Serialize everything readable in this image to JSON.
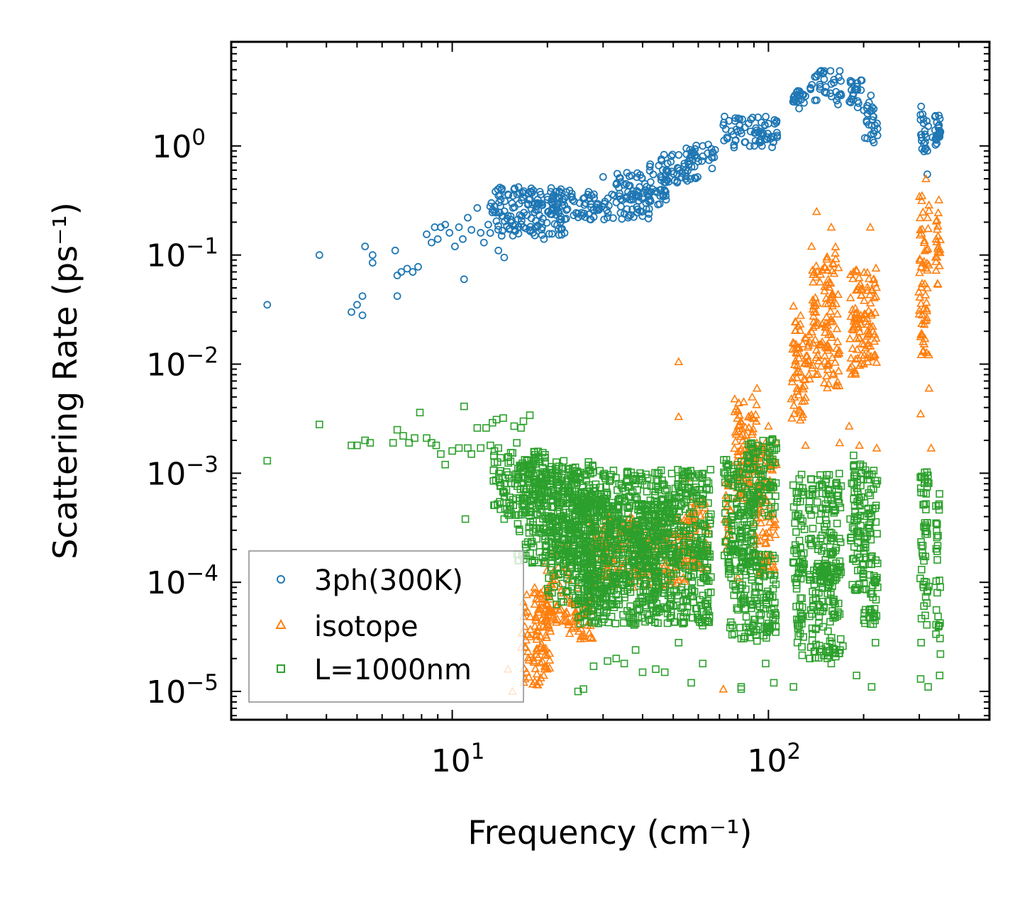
{
  "chart_data": {
    "type": "scatter",
    "title": "",
    "xlabel": "Frequency (cm⁻¹)",
    "ylabel": "Scattering Rate (ps⁻¹)",
    "x_scale": "log",
    "y_scale": "log",
    "xlim": [
      2.0,
      500
    ],
    "ylim": [
      5.5e-06,
      9.0
    ],
    "x_major_ticks": [
      {
        "value": 10,
        "base": "10",
        "exp": "1"
      },
      {
        "value": 100,
        "base": "10",
        "exp": "2"
      }
    ],
    "y_major_ticks": [
      {
        "value": 1,
        "base": "10",
        "exp": "0"
      },
      {
        "value": 0.1,
        "base": "10",
        "exp": "−1"
      },
      {
        "value": 0.01,
        "base": "10",
        "exp": "−2"
      },
      {
        "value": 0.001,
        "base": "10",
        "exp": "−3"
      },
      {
        "value": 0.0001,
        "base": "10",
        "exp": "−4"
      },
      {
        "value": 1e-05,
        "base": "10",
        "exp": "−5"
      }
    ],
    "legend": {
      "position": "lower-left"
    },
    "series": [
      {
        "name": "3ph(300K)",
        "marker": "circle",
        "color": "#1f77b4",
        "points": [
          [
            2.6,
            0.035
          ],
          [
            3.8,
            0.1
          ],
          [
            4.8,
            0.03
          ],
          [
            5.0,
            0.035
          ],
          [
            5.2,
            0.042
          ],
          [
            5.2,
            0.028
          ],
          [
            5.3,
            0.12
          ],
          [
            5.6,
            0.085
          ],
          [
            5.6,
            0.1
          ],
          [
            6.6,
            0.11
          ],
          [
            6.7,
            0.065
          ],
          [
            6.7,
            0.042
          ],
          [
            6.9,
            0.07
          ],
          [
            7.2,
            0.075
          ],
          [
            7.5,
            0.07
          ],
          [
            7.8,
            0.078
          ],
          [
            8.3,
            0.155
          ],
          [
            8.6,
            0.13
          ],
          [
            8.8,
            0.18
          ],
          [
            9.0,
            0.14
          ],
          [
            9.2,
            0.18
          ],
          [
            9.5,
            0.19
          ],
          [
            9.8,
            0.16
          ],
          [
            10.2,
            0.12
          ],
          [
            10.5,
            0.18
          ],
          [
            10.8,
            0.14
          ],
          [
            10.9,
            0.06
          ],
          [
            11.2,
            0.22
          ],
          [
            11.5,
            0.17
          ],
          [
            12.0,
            0.27
          ],
          [
            12.3,
            0.16
          ],
          [
            12.6,
            0.13
          ],
          [
            13.0,
            0.19
          ],
          [
            13.3,
            0.3
          ],
          [
            13.6,
            0.25
          ],
          [
            14.0,
            0.11
          ],
          [
            14.2,
            0.28
          ],
          [
            14.6,
            0.095
          ],
          [
            15.0,
            0.36
          ],
          [
            15.3,
            0.2
          ],
          [
            15.7,
            0.4
          ],
          [
            16.2,
            0.42
          ],
          [
            16.8,
            0.18
          ],
          [
            17.4,
            0.37
          ],
          [
            18.0,
            0.16
          ],
          [
            18.6,
            0.3
          ],
          [
            19.5,
            0.14
          ],
          [
            20.5,
            0.38
          ],
          [
            22.0,
            0.2
          ],
          [
            23.5,
            0.39
          ],
          [
            25.0,
            0.24
          ],
          [
            27.0,
            0.38
          ],
          [
            28.0,
            0.26
          ],
          [
            30.0,
            0.52
          ],
          [
            32.0,
            0.36
          ],
          [
            35.0,
            0.44
          ],
          [
            36.0,
            0.22
          ],
          [
            41.0,
            0.3
          ],
          [
            45.0,
            0.66
          ],
          [
            52.0,
            0.62
          ],
          [
            55.0,
            0.95
          ],
          [
            60.0,
            0.72
          ],
          [
            62.0,
            1.0
          ],
          [
            66.0,
            0.94
          ],
          [
            72.0,
            1.55
          ],
          [
            75.0,
            1.7
          ],
          [
            80.0,
            1.35
          ],
          [
            88.0,
            1.75
          ],
          [
            100.0,
            1.6
          ],
          [
            104.0,
            1.2
          ],
          [
            121.0,
            2.9
          ],
          [
            125.0,
            2.2
          ],
          [
            136.0,
            3.3
          ],
          [
            143.0,
            4.5
          ],
          [
            158.0,
            3.7
          ],
          [
            166.0,
            2.4
          ],
          [
            185.0,
            2.9
          ],
          [
            196.0,
            4.0
          ],
          [
            208.0,
            2.5
          ],
          [
            215.0,
            1.3
          ],
          [
            304.0,
            2.3
          ],
          [
            310.0,
            1.05
          ],
          [
            318.0,
            0.55
          ],
          [
            330.0,
            1.2
          ],
          [
            346.0,
            1.9
          ],
          [
            350.0,
            1.35
          ]
        ],
        "clusters": [
          [
            13,
            23,
            0.15,
            0.42
          ],
          [
            20,
            42,
            0.21,
            0.38
          ],
          [
            33,
            48,
            0.29,
            0.58
          ],
          [
            42,
            60,
            0.46,
            0.85
          ],
          [
            55,
            68,
            0.62,
            1.05
          ],
          [
            72,
            107,
            0.95,
            1.9
          ],
          [
            119,
            131,
            2.4,
            3.2
          ],
          [
            135,
            170,
            2.6,
            4.9
          ],
          [
            180,
            200,
            2.1,
            4.1
          ],
          [
            200,
            222,
            1.05,
            3.0
          ],
          [
            301,
            322,
            0.85,
            2.0
          ],
          [
            336,
            350,
            0.95,
            1.95
          ]
        ]
      },
      {
        "name": "isotope",
        "marker": "triangle",
        "color": "#ff7f0e",
        "points": [
          [
            15.0,
            1.6e-05
          ],
          [
            15.5,
            1e-05
          ],
          [
            17.0,
            1.3e-05
          ],
          [
            18.5,
            3e-05
          ],
          [
            19.8,
            0.00015
          ],
          [
            21.0,
            0.00019
          ],
          [
            22.0,
            0.00023
          ],
          [
            23.5,
            0.00023
          ],
          [
            25.0,
            7e-05
          ],
          [
            28.0,
            0.00019
          ],
          [
            52.0,
            0.0105
          ],
          [
            52.0,
            0.0033
          ],
          [
            55.0,
            0.0009
          ],
          [
            72.0,
            1.05e-05
          ],
          [
            80.0,
            0.00011
          ],
          [
            92.0,
            0.006
          ],
          [
            100.0,
            0.0027
          ],
          [
            106.0,
            0.0012
          ],
          [
            120.0,
            0.034
          ],
          [
            123.0,
            0.0075
          ],
          [
            131.0,
            0.0018
          ],
          [
            137.0,
            0.12
          ],
          [
            142.0,
            0.25
          ],
          [
            148.0,
            0.016
          ],
          [
            158.0,
            0.18
          ],
          [
            160.0,
            0.008
          ],
          [
            168.0,
            0.0019
          ],
          [
            180.0,
            0.0027
          ],
          [
            186.0,
            0.07
          ],
          [
            194.0,
            0.0018
          ],
          [
            210.0,
            0.18
          ],
          [
            214.0,
            0.02
          ],
          [
            220.0,
            0.0017
          ],
          [
            303.0,
            0.0035
          ],
          [
            315.0,
            0.5
          ],
          [
            318.0,
            0.05
          ],
          [
            322.0,
            0.006
          ],
          [
            327.0,
            0.0017
          ],
          [
            339.0,
            0.14
          ],
          [
            346.0,
            0.32
          ]
        ],
        "clusters": [
          [
            16.5,
            20.5,
            1.1e-05,
            9e-05
          ],
          [
            19.5,
            23.5,
            4e-05,
            0.00014
          ],
          [
            23.5,
            28.0,
            3e-05,
            0.0001
          ],
          [
            27.0,
            55.0,
            9e-05,
            0.0004
          ],
          [
            55.0,
            64.0,
            0.00012,
            0.0006
          ],
          [
            72.0,
            76.0,
            0.0002,
            0.0009
          ],
          [
            78.0,
            92.0,
            0.0005,
            0.005
          ],
          [
            90.0,
            106.0,
            0.00012,
            0.002
          ],
          [
            118.0,
            129.0,
            0.003,
            0.03
          ],
          [
            129.0,
            135.0,
            0.004,
            0.02
          ],
          [
            137.0,
            148.0,
            0.008,
            0.08
          ],
          [
            150.0,
            168.0,
            0.006,
            0.12
          ],
          [
            180.0,
            196.0,
            0.008,
            0.09
          ],
          [
            196.0,
            220.0,
            0.01,
            0.09
          ],
          [
            299.0,
            322.0,
            0.012,
            0.35
          ],
          [
            337.0,
            350.0,
            0.05,
            0.3
          ]
        ]
      },
      {
        "name": "L=1000nm",
        "marker": "square",
        "color": "#2ca02c",
        "points": [
          [
            2.6,
            0.0013
          ],
          [
            3.8,
            0.0028
          ],
          [
            4.8,
            0.0018
          ],
          [
            5.0,
            0.0018
          ],
          [
            5.3,
            0.002
          ],
          [
            5.5,
            0.0019
          ],
          [
            6.5,
            0.0019
          ],
          [
            6.7,
            0.0025
          ],
          [
            7.0,
            0.0022
          ],
          [
            7.3,
            0.0019
          ],
          [
            7.6,
            0.0021
          ],
          [
            7.9,
            0.0036
          ],
          [
            8.3,
            0.0021
          ],
          [
            8.6,
            0.0019
          ],
          [
            8.9,
            0.0018
          ],
          [
            9.2,
            0.0015
          ],
          [
            9.5,
            0.0012
          ],
          [
            10.0,
            0.0016
          ],
          [
            10.5,
            0.0017
          ],
          [
            10.9,
            0.0041
          ],
          [
            11.2,
            0.0017
          ],
          [
            11.5,
            0.0015
          ],
          [
            12.0,
            0.0026
          ],
          [
            12.3,
            0.0017
          ],
          [
            12.8,
            0.0026
          ],
          [
            13.2,
            0.0018
          ],
          [
            13.4,
            0.0029
          ],
          [
            13.6,
            0.0016
          ],
          [
            13.8,
            0.0031
          ],
          [
            14.0,
            0.0017
          ],
          [
            14.5,
            0.0032
          ],
          [
            15.0,
            0.0014
          ],
          [
            15.7,
            0.0027
          ],
          [
            16.0,
            0.0019
          ],
          [
            16.5,
            0.0026
          ],
          [
            16.8,
            0.003
          ],
          [
            17.2,
            0.0013
          ],
          [
            17.6,
            0.0034
          ],
          [
            18.0,
            0.0012
          ],
          [
            11.0,
            0.00038
          ],
          [
            13.5,
            0.00085
          ],
          [
            14.6,
            0.00038
          ],
          [
            15.2,
            0.0006
          ],
          [
            17.5,
            0.00032
          ],
          [
            18.5,
            0.00025
          ],
          [
            19.5,
            0.00015
          ],
          [
            20.5,
            0.00013
          ],
          [
            22.0,
            0.00012
          ],
          [
            25.0,
            1e-05
          ],
          [
            26.0,
            1.05e-05
          ],
          [
            28.0,
            1.7e-05
          ],
          [
            29.0,
            4.2e-05
          ],
          [
            31.0,
            1.9e-05
          ],
          [
            33.0,
            2e-05
          ],
          [
            35.0,
            1.8e-05
          ],
          [
            38.0,
            2.4e-05
          ],
          [
            40.0,
            1.5e-05
          ],
          [
            44.0,
            1.6e-05
          ],
          [
            47.0,
            1.5e-05
          ],
          [
            52.0,
            2.8e-05
          ],
          [
            57.0,
            1.2e-05
          ],
          [
            62.0,
            1.8e-05
          ],
          [
            75.0,
            0.0009
          ],
          [
            82.0,
            1.1e-05
          ],
          [
            82.0,
            1.05e-05
          ],
          [
            92.0,
            2.9e-05
          ],
          [
            98.0,
            1.8e-05
          ],
          [
            104.0,
            1.2e-05
          ],
          [
            120.0,
            1.1e-05
          ],
          [
            140.0,
            2.3e-05
          ],
          [
            158.0,
            1.8e-05
          ],
          [
            172.0,
            2.6e-05
          ],
          [
            190.0,
            1.4e-05
          ],
          [
            212.0,
            1.1e-05
          ],
          [
            218.0,
            2.8e-05
          ],
          [
            303.0,
            1.3e-05
          ],
          [
            304.0,
            2.8e-05
          ],
          [
            320.0,
            1.1e-05
          ],
          [
            348.0,
            1.4e-05
          ],
          [
            350.0,
            2.2e-05
          ]
        ],
        "clusters": [
          [
            13.5,
            20.0,
            0.0004,
            0.0016
          ],
          [
            16.0,
            28.0,
            0.00015,
            0.0013
          ],
          [
            20.0,
            45.0,
            6e-05,
            0.0011
          ],
          [
            25.0,
            50.0,
            4e-05,
            0.0006
          ],
          [
            45.0,
            66.0,
            0.00015,
            0.0011
          ],
          [
            50.0,
            66.0,
            4e-05,
            0.0002
          ],
          [
            72.0,
            90.0,
            0.00015,
            0.0016
          ],
          [
            85.0,
            106.0,
            0.0004,
            0.0021
          ],
          [
            74.0,
            106.0,
            3e-05,
            0.0002
          ],
          [
            119.0,
            130.0,
            0.0001,
            0.001
          ],
          [
            122.0,
            130.0,
            2e-05,
            0.00015
          ],
          [
            134.0,
            170.0,
            0.0001,
            0.001
          ],
          [
            134.0,
            170.0,
            2e-05,
            0.00015
          ],
          [
            180.0,
            200.0,
            8e-05,
            0.0015
          ],
          [
            200.0,
            222.0,
            4e-05,
            0.0011
          ],
          [
            301.0,
            322.0,
            4e-05,
            0.0012
          ],
          [
            338.0,
            350.0,
            3e-05,
            0.0007
          ]
        ]
      }
    ]
  }
}
